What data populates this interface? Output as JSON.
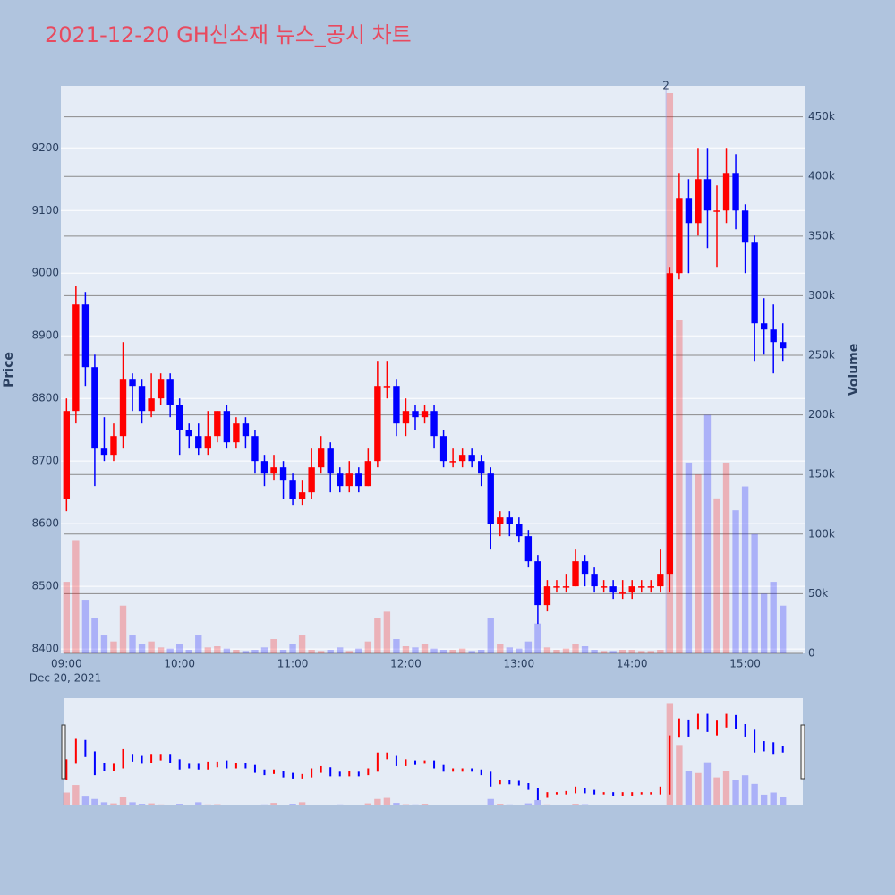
{
  "chart_data": {
    "type": "candlestick",
    "title": "2021-12-20 GH신소재 뉴스_공시 차트",
    "title_color": "#e84a5f",
    "y_label": "Price",
    "y2_label": "Volume",
    "x_sublabel": "Dec 20, 2021",
    "increasing_color": "#ff0000",
    "decreasing_color": "#0000ff",
    "xlim": [
      "08:57",
      "15:32"
    ],
    "xticks": [
      "09:00",
      "10:00",
      "11:00",
      "12:00",
      "13:00",
      "14:00",
      "15:00"
    ],
    "ylim": [
      8393,
      9299
    ],
    "yticks": [
      8400,
      8500,
      8600,
      8700,
      8800,
      8900,
      9000,
      9100,
      9200
    ],
    "y2lim": [
      0,
      476000
    ],
    "y2ticks": [
      0,
      {
        "value": 50000,
        "label": "50k"
      },
      {
        "value": 100000,
        "label": "100k"
      },
      {
        "value": 150000,
        "label": "150k"
      },
      {
        "value": 200000,
        "label": "200k"
      },
      {
        "value": 250000,
        "label": "250k"
      },
      {
        "value": 300000,
        "label": "300k"
      },
      {
        "value": 350000,
        "label": "350k"
      },
      {
        "value": 400000,
        "label": "400k"
      },
      {
        "value": 450000,
        "label": "450k"
      }
    ],
    "annotations": [
      {
        "x": "14:18",
        "text": "2"
      }
    ],
    "x": [
      "09:00",
      "09:05",
      "09:10",
      "09:15",
      "09:20",
      "09:25",
      "09:30",
      "09:35",
      "09:40",
      "09:45",
      "09:50",
      "09:55",
      "10:00",
      "10:05",
      "10:10",
      "10:15",
      "10:20",
      "10:25",
      "10:30",
      "10:35",
      "10:40",
      "10:45",
      "10:50",
      "10:55",
      "11:00",
      "11:05",
      "11:10",
      "11:15",
      "11:20",
      "11:25",
      "11:30",
      "11:35",
      "11:40",
      "11:45",
      "11:50",
      "11:55",
      "12:00",
      "12:05",
      "12:10",
      "12:15",
      "12:20",
      "12:25",
      "12:30",
      "12:35",
      "12:40",
      "12:45",
      "12:50",
      "12:55",
      "13:00",
      "13:05",
      "13:10",
      "13:15",
      "13:20",
      "13:25",
      "13:30",
      "13:35",
      "13:40",
      "13:45",
      "13:50",
      "13:55",
      "14:00",
      "14:05",
      "14:10",
      "14:15",
      "14:20",
      "14:25",
      "14:30",
      "14:35",
      "14:40",
      "14:45",
      "14:50",
      "14:55",
      "15:00",
      "15:05",
      "15:10",
      "15:15",
      "15:20"
    ],
    "open": [
      8640,
      8780,
      8950,
      8850,
      8720,
      8710,
      8740,
      8830,
      8820,
      8780,
      8800,
      8830,
      8790,
      8750,
      8740,
      8720,
      8740,
      8780,
      8730,
      8760,
      8740,
      8700,
      8680,
      8690,
      8670,
      8640,
      8650,
      8690,
      8720,
      8680,
      8660,
      8680,
      8660,
      8700,
      8820,
      8820,
      8760,
      8780,
      8770,
      8780,
      8740,
      8700,
      8700,
      8710,
      8700,
      8680,
      8600,
      8610,
      8600,
      8580,
      8540,
      8470,
      8500,
      8500,
      8500,
      8540,
      8520,
      8500,
      8500,
      8490,
      8490,
      8500,
      8500,
      8500,
      8520,
      9000,
      9120,
      9080,
      9150,
      9100,
      9100,
      9160,
      9100,
      9050,
      8920,
      8910,
      8890
    ],
    "high": [
      8800,
      8980,
      8970,
      8870,
      8770,
      8760,
      8890,
      8840,
      8830,
      8840,
      8840,
      8840,
      8800,
      8760,
      8760,
      8780,
      8780,
      8790,
      8770,
      8770,
      8750,
      8710,
      8710,
      8700,
      8680,
      8670,
      8720,
      8740,
      8730,
      8690,
      8700,
      8690,
      8720,
      8860,
      8860,
      8830,
      8800,
      8790,
      8790,
      8790,
      8750,
      8720,
      8720,
      8720,
      8710,
      8690,
      8620,
      8620,
      8610,
      8590,
      8550,
      8510,
      8510,
      8520,
      8560,
      8550,
      8530,
      8510,
      8510,
      8510,
      8510,
      8510,
      8510,
      8560,
      9010,
      9160,
      9150,
      9200,
      9200,
      9140,
      9200,
      9190,
      9110,
      9060,
      8960,
      8950,
      8920
    ],
    "low": [
      8620,
      8760,
      8820,
      8660,
      8700,
      8700,
      8720,
      8780,
      8760,
      8770,
      8790,
      8770,
      8710,
      8720,
      8710,
      8710,
      8730,
      8720,
      8720,
      8720,
      8680,
      8660,
      8670,
      8640,
      8630,
      8630,
      8640,
      8680,
      8650,
      8650,
      8650,
      8650,
      8660,
      8690,
      8800,
      8740,
      8740,
      8750,
      8760,
      8720,
      8690,
      8690,
      8690,
      8690,
      8660,
      8560,
      8580,
      8580,
      8570,
      8530,
      8440,
      8460,
      8490,
      8490,
      8500,
      8500,
      8490,
      8490,
      8480,
      8480,
      8480,
      8490,
      8490,
      8490,
      8490,
      8990,
      9000,
      9060,
      9040,
      9010,
      9080,
      9070,
      9000,
      8860,
      8870,
      8840,
      8860
    ],
    "close": [
      8780,
      8950,
      8850,
      8720,
      8710,
      8740,
      8830,
      8820,
      8780,
      8800,
      8830,
      8790,
      8750,
      8740,
      8720,
      8740,
      8780,
      8730,
      8760,
      8740,
      8700,
      8680,
      8690,
      8670,
      8640,
      8650,
      8690,
      8720,
      8680,
      8660,
      8680,
      8660,
      8700,
      8820,
      8820,
      8760,
      8780,
      8770,
      8780,
      8740,
      8700,
      8700,
      8710,
      8700,
      8680,
      8600,
      8610,
      8600,
      8580,
      8540,
      8470,
      8500,
      8500,
      8500,
      8540,
      8520,
      8500,
      8500,
      8490,
      8490,
      8500,
      8500,
      8500,
      8520,
      9000,
      9120,
      9080,
      9150,
      9100,
      9100,
      9160,
      9100,
      9050,
      8920,
      8910,
      8890,
      8880
    ],
    "volume": [
      60000,
      95000,
      45000,
      30000,
      15000,
      10000,
      40000,
      15000,
      8000,
      10000,
      5000,
      4000,
      8000,
      3000,
      15000,
      5000,
      6000,
      4000,
      3000,
      2000,
      3000,
      5000,
      12000,
      3000,
      8000,
      15000,
      3000,
      2000,
      3000,
      5000,
      2000,
      4000,
      10000,
      30000,
      35000,
      12000,
      6000,
      5000,
      8000,
      4000,
      3000,
      3000,
      4000,
      2000,
      3000,
      30000,
      8000,
      5000,
      4000,
      10000,
      25000,
      5000,
      3000,
      4000,
      8000,
      6000,
      3000,
      2000,
      2000,
      3000,
      3000,
      2000,
      2000,
      3000,
      470000,
      280000,
      160000,
      150000,
      200000,
      130000,
      160000,
      120000,
      140000,
      100000,
      50000,
      60000,
      40000
    ]
  }
}
